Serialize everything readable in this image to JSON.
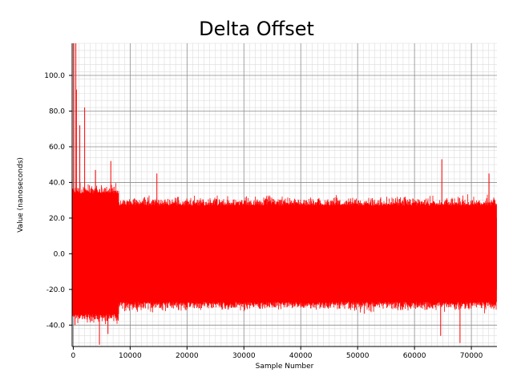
{
  "chart_data": {
    "type": "line",
    "title": "Delta Offset",
    "xlabel": "Sample Number",
    "ylabel": "Value (nanoseconds)",
    "xlim": [
      -200,
      74500
    ],
    "ylim": [
      -52,
      118
    ],
    "xticks": [
      0,
      10000,
      20000,
      30000,
      40000,
      50000,
      60000,
      70000
    ],
    "xtick_labels": [
      "0",
      "10000",
      "20000",
      "30000",
      "40000",
      "50000",
      "60000",
      "70000"
    ],
    "yticks": [
      -40,
      -20,
      0,
      20,
      40,
      60,
      80,
      100
    ],
    "ytick_labels": [
      "-40.0",
      "-20.0",
      "0.0",
      "20.0",
      "40.0",
      "60.0",
      "80.0",
      "100.0"
    ],
    "grid": true,
    "minor_grid": true,
    "legend": "none",
    "series": [
      {
        "color": "#ff0000",
        "approx_points": 74500,
        "typical_range": [
          -30,
          30
        ],
        "spikes": [
          {
            "x": 100,
            "y": 118
          },
          {
            "x": 450,
            "y": 118
          },
          {
            "x": 550,
            "y": 92
          },
          {
            "x": 1150,
            "y": 72
          },
          {
            "x": 2000,
            "y": 82
          },
          {
            "x": 3900,
            "y": 47
          },
          {
            "x": 6600,
            "y": 52
          },
          {
            "x": 14700,
            "y": 45
          },
          {
            "x": 64800,
            "y": 53
          },
          {
            "x": 73100,
            "y": 45
          },
          {
            "x": 300,
            "y": -40
          },
          {
            "x": 4600,
            "y": -51
          },
          {
            "x": 6100,
            "y": -45
          },
          {
            "x": 64600,
            "y": -46
          },
          {
            "x": 68000,
            "y": -50
          }
        ]
      }
    ]
  }
}
